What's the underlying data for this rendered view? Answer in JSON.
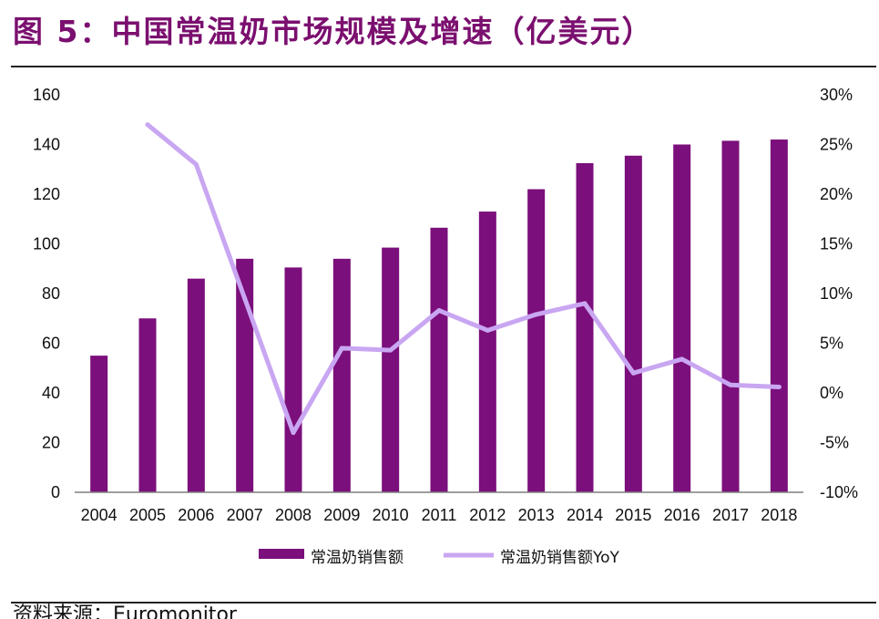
{
  "title": "图 5：中国常温奶市场规模及增速（亿美元）",
  "source": "资料来源：Euromonitor",
  "colors": {
    "bar": "#7b0f7b",
    "line": "#c9a6f2",
    "title": "#7b0f6f"
  },
  "chart_data": {
    "type": "bar+line",
    "categories": [
      "2004",
      "2005",
      "2006",
      "2007",
      "2008",
      "2009",
      "2010",
      "2011",
      "2012",
      "2013",
      "2014",
      "2015",
      "2016",
      "2017",
      "2018"
    ],
    "series": [
      {
        "name": "常温奶销售额",
        "type": "bar",
        "axis": "left",
        "values": [
          55,
          70,
          86,
          94,
          90.5,
          94,
          98.5,
          106.5,
          113,
          122,
          132.5,
          135.5,
          140,
          141.5,
          142
        ]
      },
      {
        "name": "常温奶销售额YoY",
        "type": "line",
        "axis": "right",
        "values": [
          null,
          27.0,
          23.0,
          9.5,
          -4.0,
          4.5,
          4.3,
          8.3,
          6.3,
          7.9,
          9.0,
          2.0,
          3.4,
          0.8,
          0.6
        ]
      }
    ],
    "y_left": {
      "min": 0,
      "max": 160,
      "step": 20,
      "ticks": [
        "0",
        "20",
        "40",
        "60",
        "80",
        "100",
        "120",
        "140",
        "160"
      ]
    },
    "y_right": {
      "min": -10,
      "max": 30,
      "step": 5,
      "ticks": [
        "-10%",
        "-5%",
        "0%",
        "5%",
        "10%",
        "15%",
        "20%",
        "25%",
        "30%"
      ]
    },
    "grid": false,
    "legend_position": "bottom"
  }
}
